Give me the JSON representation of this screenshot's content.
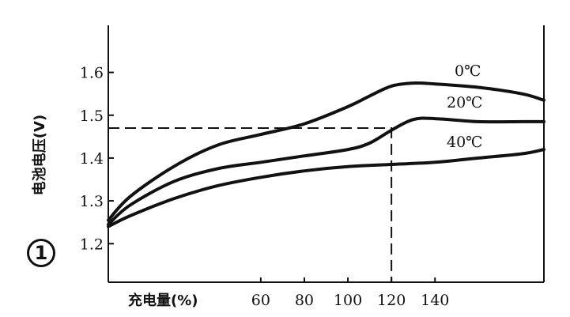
{
  "figure_marker": "1",
  "chart_data": {
    "type": "line",
    "title": "",
    "xlabel": "充电量(%)",
    "ylabel": "电池电压(V)",
    "xlim": [
      -10,
      190
    ],
    "ylim": [
      1.11,
      1.71
    ],
    "x_ticks": [
      60,
      80,
      100,
      120,
      140
    ],
    "x_tick_labels": [
      "60",
      "80",
      "100",
      "120",
      "140"
    ],
    "y_ticks": [
      1.2,
      1.3,
      1.4,
      1.5,
      1.6
    ],
    "y_tick_labels": [
      "1.2",
      "1.3",
      "1.4",
      "1.5",
      "1.6"
    ],
    "grid": false,
    "legend": "inline-labels",
    "series": [
      {
        "name": "0℃",
        "x": [
          -10,
          0,
          20,
          40,
          60,
          80,
          100,
          110,
          120,
          130,
          140,
          160,
          180,
          190
        ],
        "y": [
          1.255,
          1.31,
          1.38,
          1.43,
          1.455,
          1.48,
          1.52,
          1.545,
          1.568,
          1.575,
          1.573,
          1.565,
          1.55,
          1.535
        ]
      },
      {
        "name": "20℃",
        "x": [
          -10,
          0,
          20,
          40,
          60,
          80,
          100,
          110,
          120,
          130,
          140,
          160,
          180,
          190
        ],
        "y": [
          1.245,
          1.29,
          1.345,
          1.375,
          1.39,
          1.405,
          1.42,
          1.435,
          1.465,
          1.49,
          1.492,
          1.485,
          1.485,
          1.485
        ]
      },
      {
        "name": "40℃",
        "x": [
          -10,
          0,
          20,
          40,
          60,
          80,
          100,
          120,
          140,
          160,
          180,
          190
        ],
        "y": [
          1.24,
          1.265,
          1.305,
          1.335,
          1.355,
          1.37,
          1.38,
          1.385,
          1.39,
          1.4,
          1.41,
          1.42
        ]
      }
    ],
    "annotations": [
      {
        "type": "dashed-guide",
        "x": 120,
        "y": 1.47
      }
    ]
  }
}
